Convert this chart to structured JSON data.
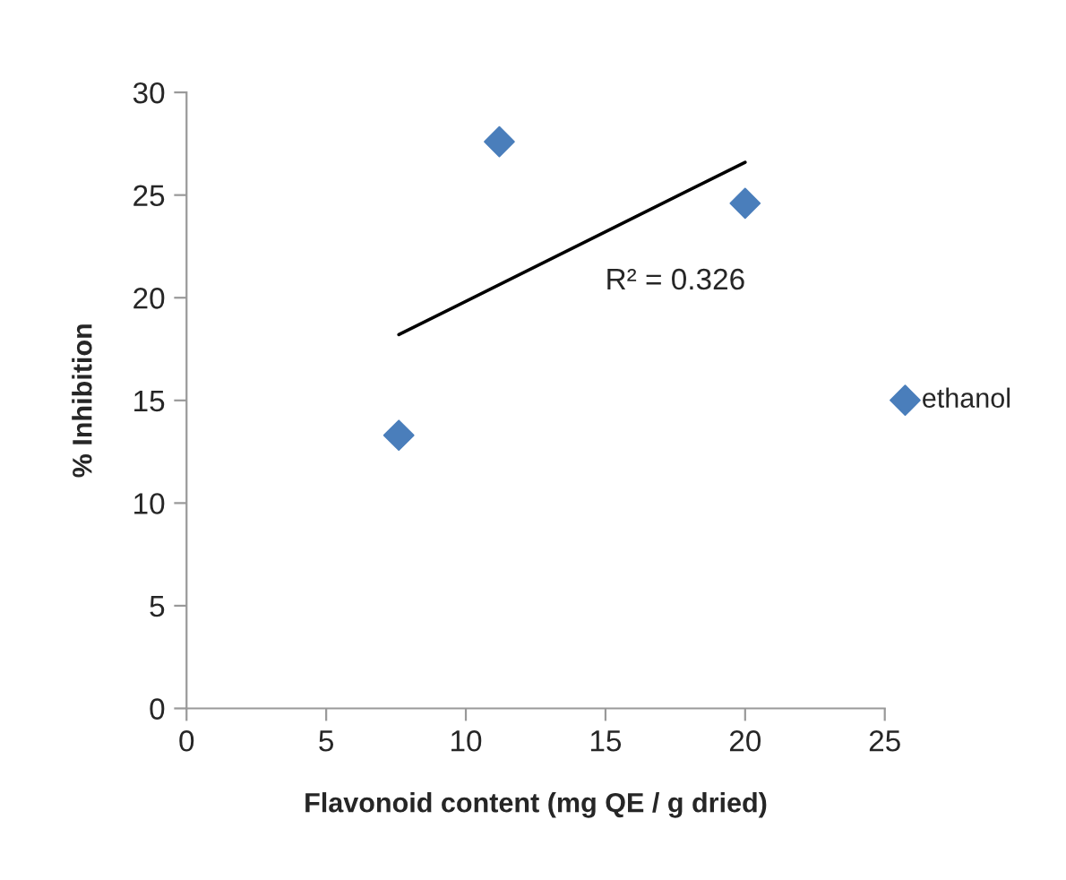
{
  "chart_data": {
    "type": "scatter",
    "xlabel": "Flavonoid content (mg QE / g dried)",
    "ylabel": "% Inhibition",
    "xlim": [
      0,
      25
    ],
    "xticks": [
      0,
      5,
      10,
      15,
      20,
      25
    ],
    "ylim": [
      0,
      30
    ],
    "yticks": [
      0,
      5,
      10,
      15,
      20,
      25,
      30
    ],
    "marker": "diamond",
    "legend": "right",
    "grid": false,
    "series": [
      {
        "name": "ethanol",
        "color": "#4a7ebb",
        "x": [
          7.6,
          11.2,
          20.0
        ],
        "values": [
          13.3,
          27.6,
          24.6
        ]
      },
      {
        "type": "line",
        "color": "#000000",
        "x": [
          7.6,
          20.0
        ],
        "values": [
          18.2,
          26.6
        ],
        "marker": "none"
      }
    ],
    "annotations": [
      "R² = 0.326"
    ]
  }
}
